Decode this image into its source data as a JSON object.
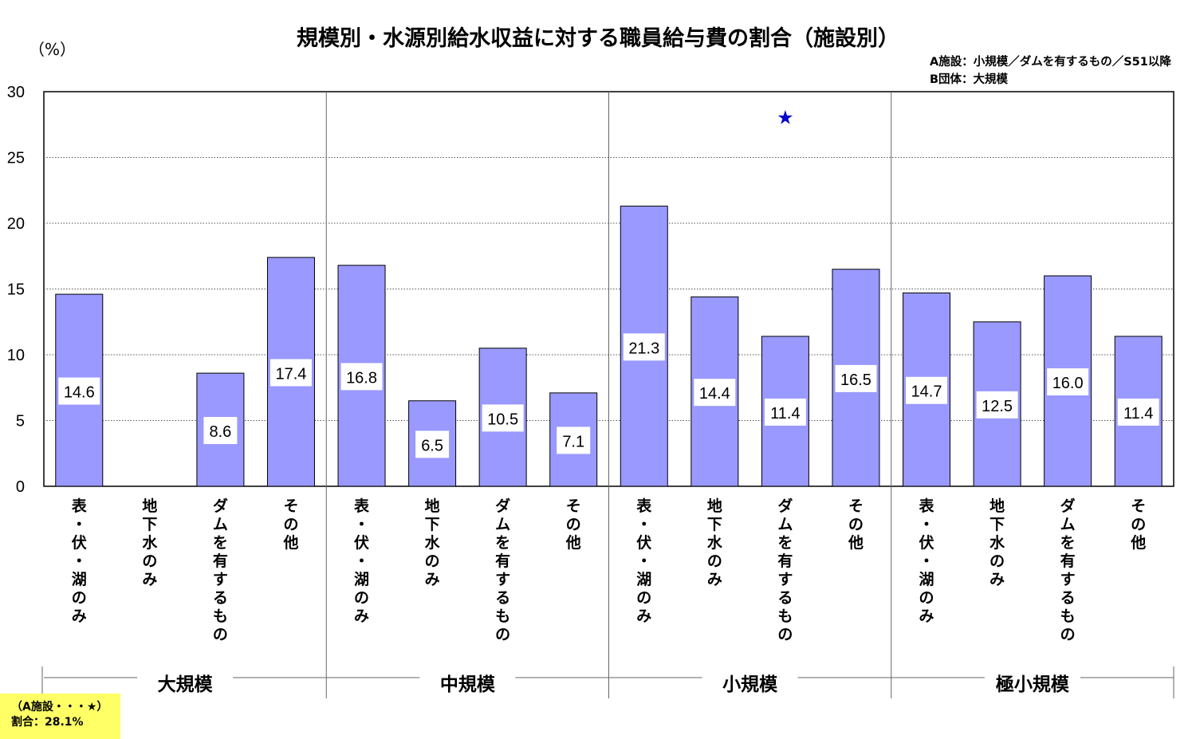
{
  "title": "規模別・水源別給水収益に対する職員給与費の割合（施設別）",
  "unit_label": "（%）",
  "notes": [
    "A施設：小規模／ダムを有するもの／S51以降",
    "B団体：大規模"
  ],
  "callout": [
    "（A施設・・・★）",
    "割合：28.1%"
  ],
  "colors": {
    "bar": "#9999ff",
    "bar_border": "#000000",
    "star": "#0000cc",
    "callout_bg": "#ffff66"
  },
  "chart_data": {
    "type": "bar",
    "title": "規模別・水源別給水収益に対する職員給与費の割合（施設別）",
    "ylabel": "（%）",
    "ylim": [
      0,
      30
    ],
    "yticks": [
      0,
      5,
      10,
      15,
      20,
      25,
      30
    ],
    "grid": true,
    "groups": [
      {
        "name": "大規模",
        "categories": [
          "表・伏・湖のみ",
          "地下水のみ",
          "ダムを有するもの",
          "その他"
        ],
        "values": [
          14.6,
          null,
          8.6,
          17.4
        ],
        "labels": [
          "14.6",
          "",
          "8.6",
          "17.4"
        ]
      },
      {
        "name": "中規模",
        "categories": [
          "表・伏・湖のみ",
          "地下水のみ",
          "ダムを有するもの",
          "その他"
        ],
        "values": [
          16.8,
          6.5,
          10.5,
          7.1
        ],
        "labels": [
          "16.8",
          "6.5",
          "10.5",
          "7.1"
        ]
      },
      {
        "name": "小規模",
        "categories": [
          "表・伏・湖のみ",
          "地下水のみ",
          "ダムを有するもの",
          "その他"
        ],
        "values": [
          21.3,
          14.4,
          11.4,
          16.5
        ],
        "labels": [
          "21.3",
          "14.4",
          "11.4",
          "16.5"
        ]
      },
      {
        "name": "極小規模",
        "categories": [
          "表・伏・湖のみ",
          "地下水のみ",
          "ダムを有するもの",
          "その他"
        ],
        "values": [
          14.7,
          12.5,
          16.0,
          11.4
        ],
        "labels": [
          "14.7",
          "12.5",
          "16.0",
          "11.4"
        ]
      }
    ],
    "marker": {
      "symbol": "★",
      "group": "小規模",
      "category": "ダムを有するもの",
      "value": 28.1
    }
  }
}
